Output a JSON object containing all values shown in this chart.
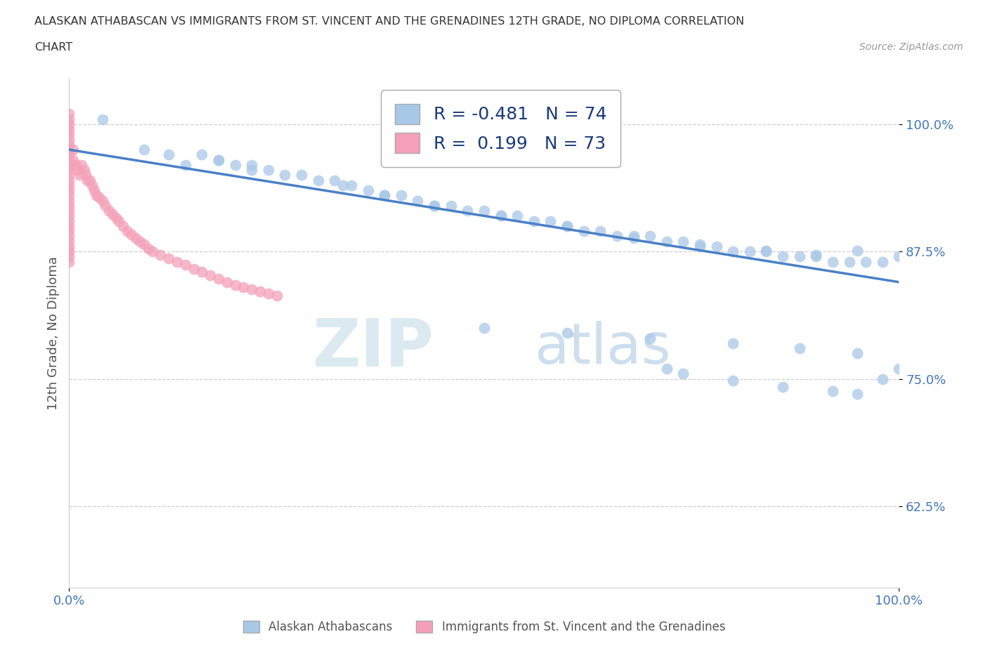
{
  "title_line1": "ALASKAN ATHABASCAN VS IMMIGRANTS FROM ST. VINCENT AND THE GRENADINES 12TH GRADE, NO DIPLOMA CORRELATION",
  "title_line2": "CHART",
  "source_text": "Source: ZipAtlas.com",
  "ylabel": "12th Grade, No Diploma",
  "blue_color": "#a8c8e8",
  "pink_color": "#f4a0b8",
  "line_color": "#4a80c8",
  "legend_r1": "R = -0.481",
  "legend_n1": "N = 74",
  "legend_r2": "R =  0.199",
  "legend_n2": "N = 73",
  "bottom_legend_1": "Alaskan Athabascans",
  "bottom_legend_2": "Immigrants from St. Vincent and the Grenadines",
  "xmin": 0.0,
  "xmax": 1.0,
  "ymin": 0.545,
  "ymax": 1.045,
  "xticks": [
    0.0,
    1.0
  ],
  "xticklabels": [
    "0.0%",
    "100.0%"
  ],
  "yticks": [
    0.625,
    0.75,
    0.875,
    1.0
  ],
  "yticklabels": [
    "62.5%",
    "75.0%",
    "87.5%",
    "100.0%"
  ],
  "trend_x": [
    0.0,
    1.0
  ],
  "trend_y": [
    0.975,
    0.845
  ],
  "blue_x": [
    0.04,
    0.09,
    0.16,
    0.18,
    0.2,
    0.22,
    0.24,
    0.26,
    0.3,
    0.32,
    0.34,
    0.36,
    0.38,
    0.4,
    0.42,
    0.44,
    0.46,
    0.48,
    0.5,
    0.52,
    0.54,
    0.56,
    0.58,
    0.6,
    0.62,
    0.64,
    0.66,
    0.68,
    0.7,
    0.72,
    0.74,
    0.76,
    0.78,
    0.8,
    0.82,
    0.84,
    0.86,
    0.88,
    0.9,
    0.92,
    0.94,
    0.96,
    0.98,
    1.0,
    0.12,
    0.14,
    0.18,
    0.22,
    0.28,
    0.33,
    0.38,
    0.44,
    0.52,
    0.6,
    0.68,
    0.76,
    0.84,
    0.9,
    0.95,
    0.5,
    0.6,
    0.7,
    0.8,
    0.88,
    0.95,
    1.0,
    0.72,
    0.74,
    0.8,
    0.86,
    0.92,
    0.95,
    0.98
  ],
  "blue_y": [
    1.005,
    0.975,
    0.97,
    0.965,
    0.96,
    0.955,
    0.955,
    0.95,
    0.945,
    0.945,
    0.94,
    0.935,
    0.93,
    0.93,
    0.925,
    0.92,
    0.92,
    0.915,
    0.915,
    0.91,
    0.91,
    0.905,
    0.905,
    0.9,
    0.895,
    0.895,
    0.89,
    0.89,
    0.89,
    0.885,
    0.885,
    0.88,
    0.88,
    0.875,
    0.875,
    0.875,
    0.87,
    0.87,
    0.87,
    0.865,
    0.865,
    0.865,
    0.865,
    0.87,
    0.97,
    0.96,
    0.965,
    0.96,
    0.95,
    0.94,
    0.93,
    0.92,
    0.91,
    0.9,
    0.888,
    0.882,
    0.876,
    0.872,
    0.876,
    0.8,
    0.795,
    0.79,
    0.785,
    0.78,
    0.775,
    0.76,
    0.76,
    0.755,
    0.748,
    0.742,
    0.738,
    0.735,
    0.75
  ],
  "pink_x": [
    0.0,
    0.0,
    0.0,
    0.0,
    0.0,
    0.0,
    0.0,
    0.0,
    0.0,
    0.0,
    0.0,
    0.0,
    0.0,
    0.0,
    0.0,
    0.0,
    0.0,
    0.0,
    0.0,
    0.0,
    0.0,
    0.0,
    0.0,
    0.0,
    0.0,
    0.0,
    0.0,
    0.0,
    0.0,
    0.0,
    0.005,
    0.005,
    0.008,
    0.01,
    0.012,
    0.015,
    0.018,
    0.02,
    0.022,
    0.025,
    0.028,
    0.03,
    0.033,
    0.036,
    0.04,
    0.044,
    0.048,
    0.052,
    0.056,
    0.06,
    0.065,
    0.07,
    0.075,
    0.08,
    0.085,
    0.09,
    0.095,
    0.1,
    0.11,
    0.12,
    0.13,
    0.14,
    0.15,
    0.16,
    0.17,
    0.18,
    0.19,
    0.2,
    0.21,
    0.22,
    0.23,
    0.24,
    0.25
  ],
  "pink_y": [
    1.01,
    1.005,
    1.0,
    0.995,
    0.99,
    0.985,
    0.98,
    0.975,
    0.97,
    0.965,
    0.96,
    0.955,
    0.95,
    0.945,
    0.94,
    0.935,
    0.93,
    0.925,
    0.92,
    0.915,
    0.91,
    0.905,
    0.9,
    0.895,
    0.89,
    0.885,
    0.88,
    0.875,
    0.87,
    0.865,
    0.975,
    0.965,
    0.96,
    0.955,
    0.95,
    0.96,
    0.955,
    0.95,
    0.945,
    0.945,
    0.94,
    0.935,
    0.93,
    0.928,
    0.925,
    0.92,
    0.915,
    0.912,
    0.908,
    0.905,
    0.9,
    0.895,
    0.892,
    0.888,
    0.885,
    0.882,
    0.878,
    0.875,
    0.872,
    0.868,
    0.865,
    0.862,
    0.858,
    0.855,
    0.852,
    0.848,
    0.845,
    0.842,
    0.84,
    0.838,
    0.836,
    0.834,
    0.832
  ]
}
